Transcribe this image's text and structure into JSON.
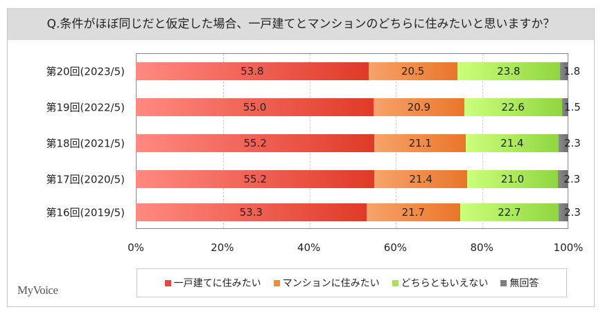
{
  "title": "Q.条件がほぼ同じだと仮定した場合、一戸建てとマンションのどちらに住みたいと思いますか？",
  "logo": "MyVoice",
  "chart_data": {
    "type": "bar",
    "orientation": "horizontal",
    "stacked": true,
    "title": "Q.条件がほぼ同じだと仮定した場合、一戸建てとマンションのどちらに住みたいと思いますか？",
    "categories": [
      "第20回(2023/5)",
      "第19回(2022/5)",
      "第18回(2021/5)",
      "第17回(2020/5)",
      "第16回(2019/5)"
    ],
    "series": [
      {
        "name": "一戸建てに住みたい",
        "color": "#e8463a",
        "values": [
          53.8,
          55.0,
          55.2,
          55.2,
          53.3
        ]
      },
      {
        "name": "マンションに住みたい",
        "color": "#f08a3c",
        "values": [
          20.5,
          20.9,
          21.1,
          21.4,
          21.7
        ]
      },
      {
        "name": "どちらともいえない",
        "color": "#a8e05a",
        "values": [
          23.8,
          22.6,
          21.4,
          21.0,
          22.7
        ]
      },
      {
        "name": "無回答",
        "color": "#7f7f7f",
        "values": [
          1.8,
          1.5,
          2.3,
          2.3,
          2.3
        ]
      }
    ],
    "xlim": [
      0,
      100
    ],
    "xticks": [
      "0%",
      "20%",
      "40%",
      "60%",
      "80%",
      "100%"
    ],
    "grid": true,
    "legend": "bottom"
  }
}
